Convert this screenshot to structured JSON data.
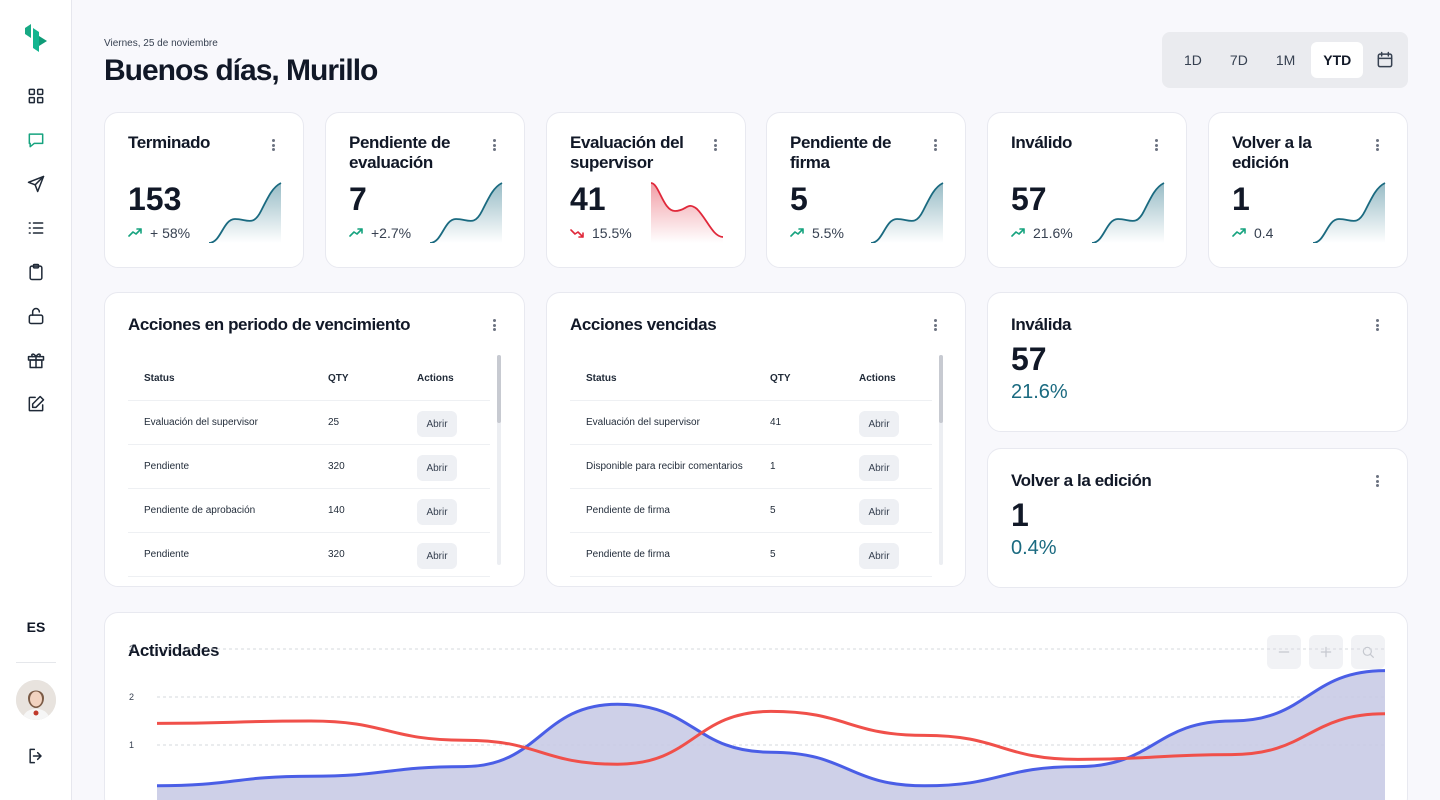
{
  "header": {
    "date": "Viernes, 25 de noviembre",
    "greeting": "Buenos días, Murillo"
  },
  "range": {
    "options": [
      "1D",
      "7D",
      "1M",
      "YTD"
    ],
    "selected": "YTD"
  },
  "sidebar": {
    "language": "ES",
    "icons": [
      "dashboard-icon",
      "chat-icon",
      "send-icon",
      "list-icon",
      "clipboard-icon",
      "unlock-icon",
      "gift-icon",
      "edit-icon"
    ],
    "active": "chat-icon"
  },
  "stats": [
    {
      "title": "Terminado",
      "value": "153",
      "trend": "+ 58%",
      "direction": "up"
    },
    {
      "title": "Pendiente de evaluación",
      "value": "7",
      "trend": "+2.7%",
      "direction": "up"
    },
    {
      "title": "Evaluación del supervisor",
      "value": "41",
      "trend": "15.5%",
      "direction": "down"
    },
    {
      "title": "Pendiente de firma",
      "value": "5",
      "trend": "5.5%",
      "direction": "up"
    },
    {
      "title": "Inválido",
      "value": "57",
      "trend": "21.6%",
      "direction": "up"
    },
    {
      "title": "Volver a la edición",
      "value": "1",
      "trend": "0.4",
      "direction": "up"
    }
  ],
  "tables": [
    {
      "title": "Acciones en periodo de vencimiento",
      "headers": [
        "Status",
        "QTY",
        "Actions"
      ],
      "rows": [
        {
          "status": "Evaluación del supervisor",
          "qty": "25",
          "action": "Abrir"
        },
        {
          "status": "Pendiente",
          "qty": "320",
          "action": "Abrir"
        },
        {
          "status": "Pendiente de aprobación",
          "qty": "140",
          "action": "Abrir"
        },
        {
          "status": "Pendiente",
          "qty": "320",
          "action": "Abrir"
        }
      ]
    },
    {
      "title": "Acciones vencidas",
      "headers": [
        "Status",
        "QTY",
        "Actions"
      ],
      "rows": [
        {
          "status": "Evaluación del supervisor",
          "qty": "41",
          "action": "Abrir"
        },
        {
          "status": "Disponible para recibir comentarios",
          "qty": "1",
          "action": "Abrir"
        },
        {
          "status": "Pendiente de firma",
          "qty": "5",
          "action": "Abrir"
        },
        {
          "status": "Pendiente de firma",
          "qty": "5",
          "action": "Abrir"
        }
      ]
    }
  ],
  "summary": [
    {
      "title": "Inválida",
      "value": "57",
      "percent": "21.6%"
    },
    {
      "title": "Volver a la edición",
      "value": "1",
      "percent": "0.4%"
    }
  ],
  "activities": {
    "title": "Actividades",
    "controls": [
      "minus-icon",
      "plus-icon",
      "search-icon"
    ]
  },
  "chart_data": {
    "type": "line",
    "title": "Actividades",
    "y_ticks": [
      "3",
      "2",
      "1"
    ],
    "ylim": [
      0,
      3
    ],
    "grid": true,
    "series": [
      {
        "color": "#4a5ee6",
        "fill": "#c9cbe6",
        "values": [
          0.15,
          0.35,
          0.55,
          1.85,
          0.85,
          0.15,
          0.55,
          1.5,
          2.55
        ]
      },
      {
        "color": "#f0504a",
        "values": [
          1.45,
          1.5,
          1.1,
          0.6,
          1.7,
          1.2,
          0.7,
          0.8,
          1.65
        ]
      }
    ]
  }
}
